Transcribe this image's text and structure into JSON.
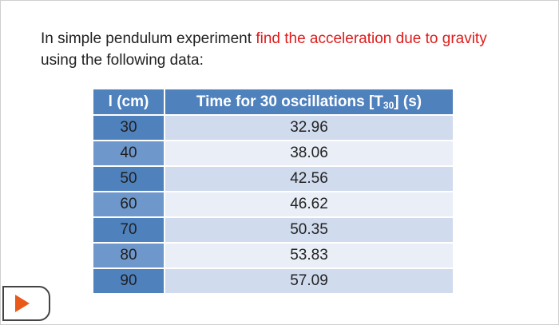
{
  "question": {
    "prefix": "In simple pendulum experiment ",
    "highlight": "find the acceleration due to gravity",
    "suffix": "using the following data:"
  },
  "table": {
    "header_length": "l (cm)",
    "header_time_prefix": "Time for 30 oscillations [T",
    "header_time_sub": "30",
    "header_time_suffix": "] (s)",
    "rows": [
      {
        "l": "30",
        "t": "32.96"
      },
      {
        "l": "40",
        "t": "38.06"
      },
      {
        "l": "50",
        "t": "42.56"
      },
      {
        "l": "60",
        "t": "46.62"
      },
      {
        "l": "70",
        "t": "50.35"
      },
      {
        "l": "80",
        "t": "53.83"
      },
      {
        "l": "90",
        "t": "57.09"
      }
    ]
  },
  "icons": {
    "play": "play-icon"
  },
  "colors": {
    "highlight": "#e01b1b",
    "header": "#4f81bd",
    "row_odd": "#d0dbee",
    "row_even": "#e9eef7",
    "play": "#e8591a"
  }
}
